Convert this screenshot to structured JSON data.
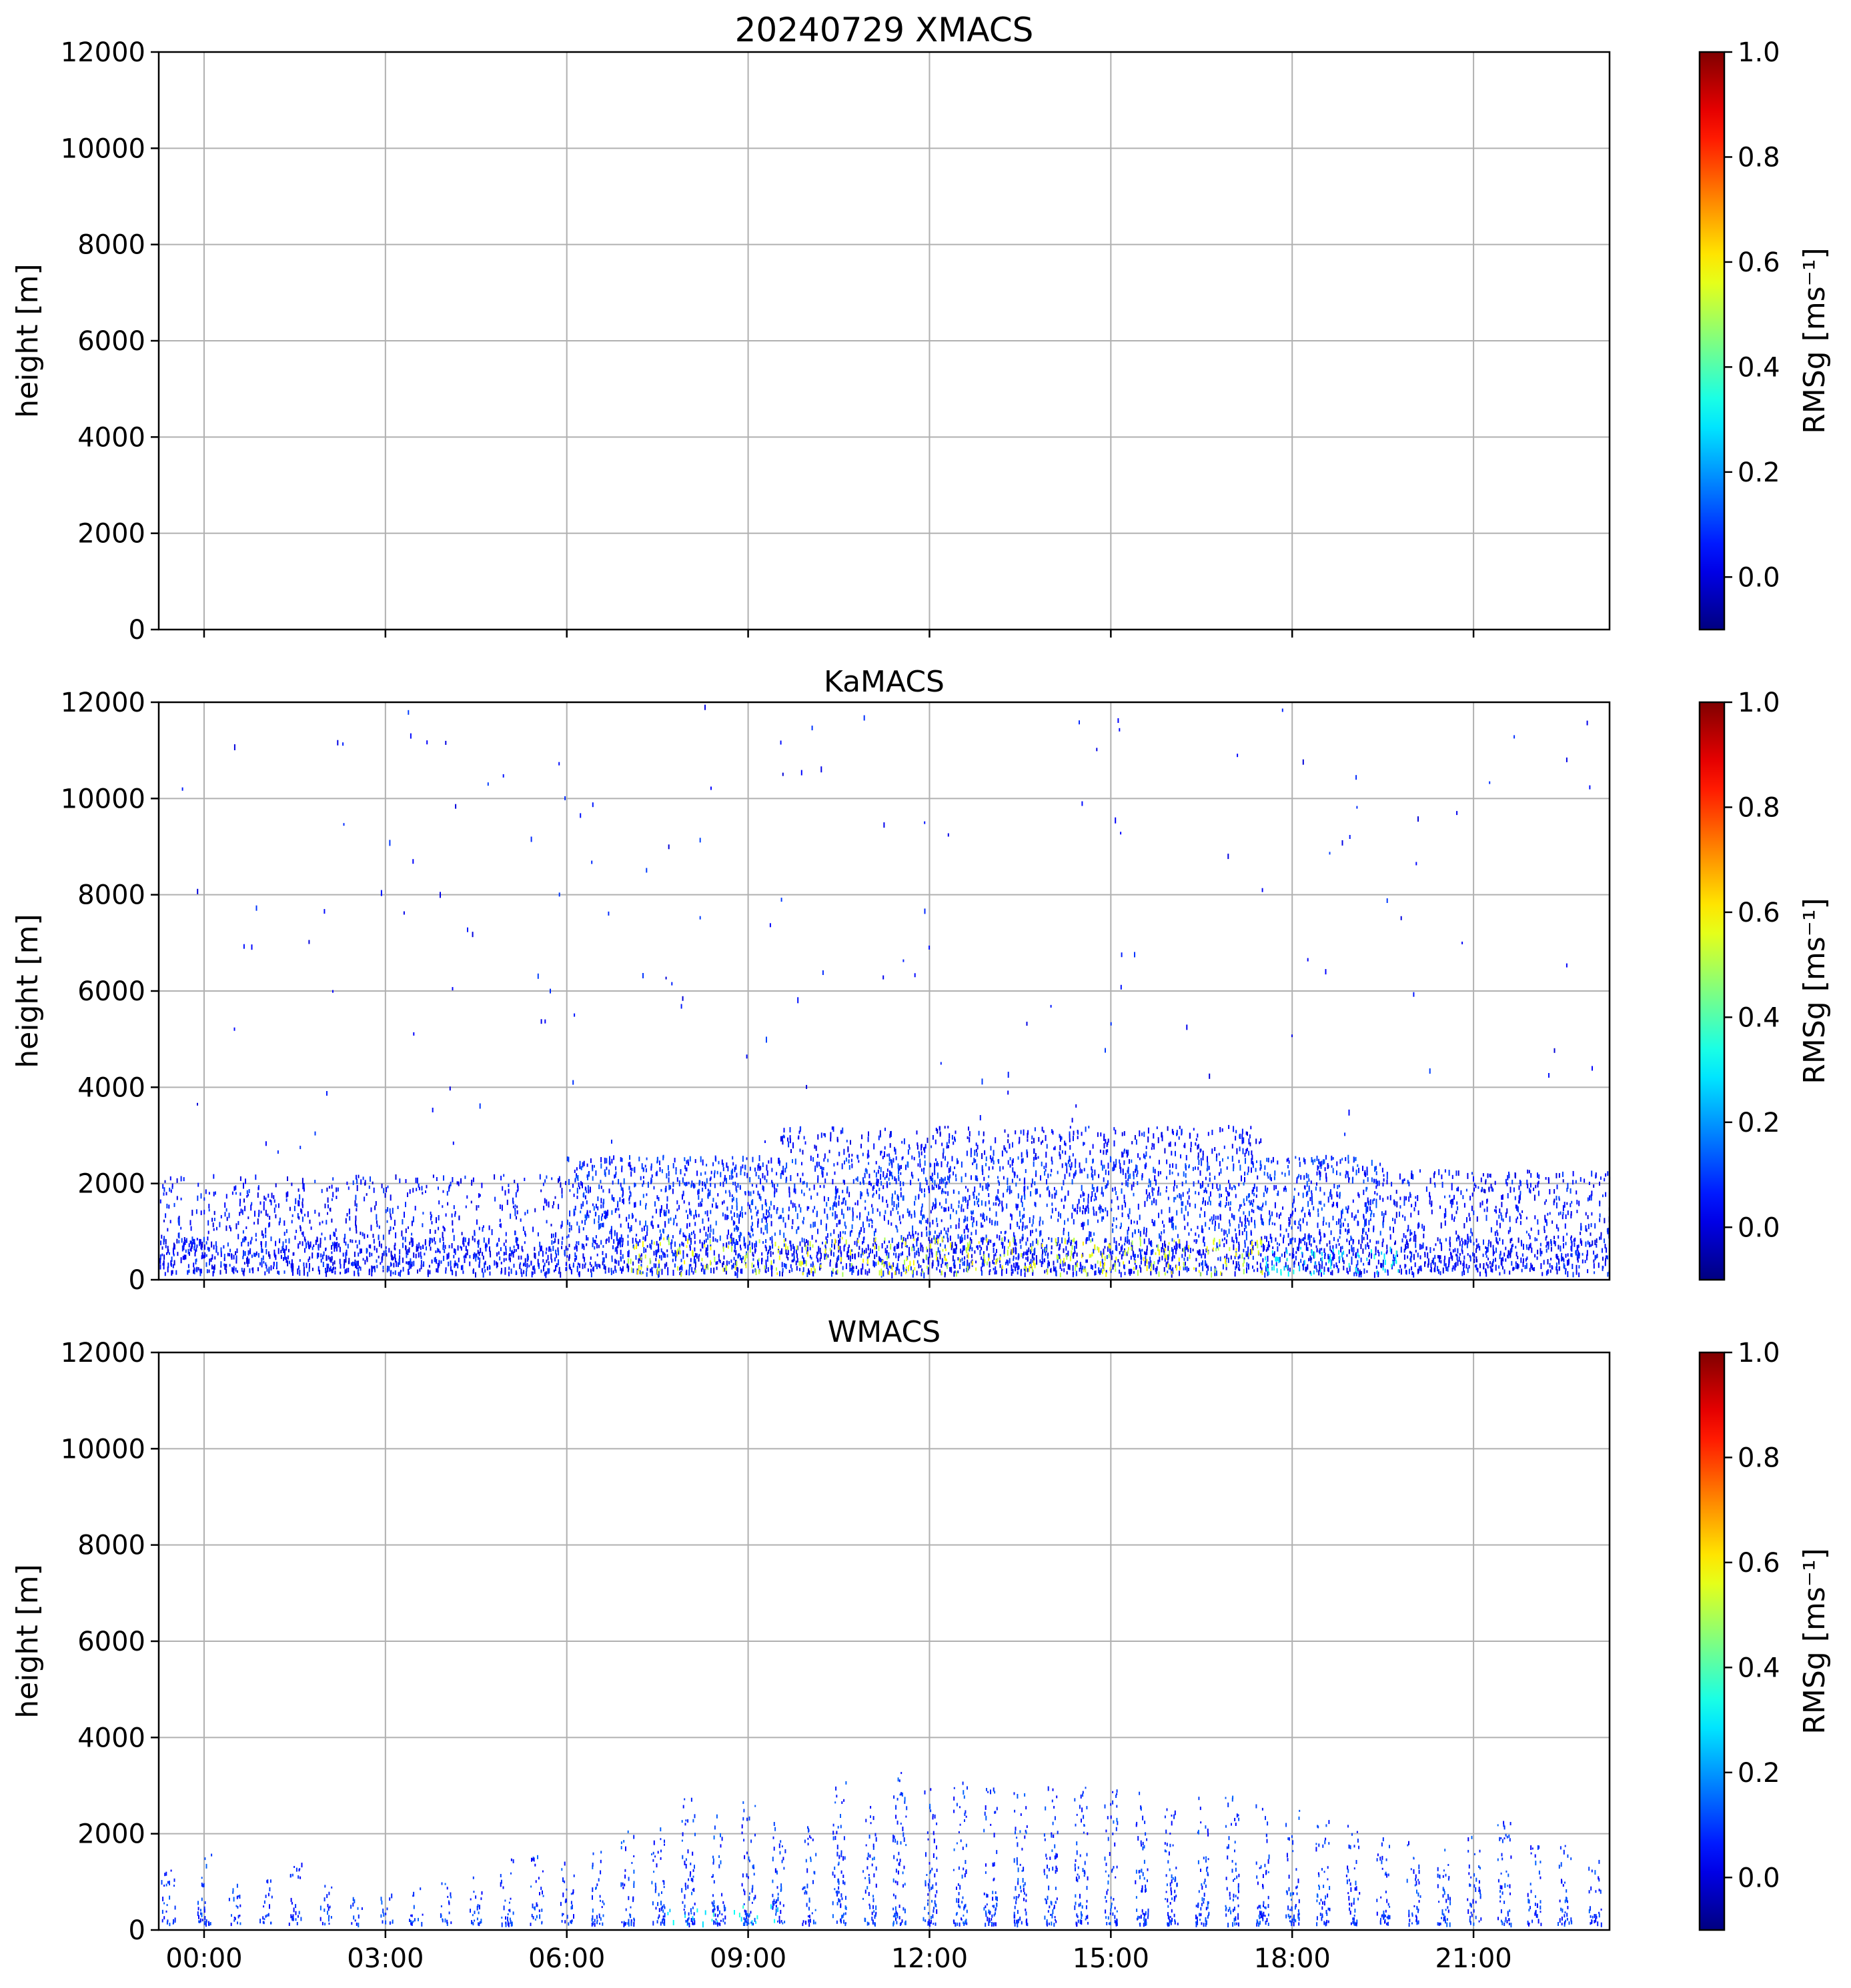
{
  "chart_data": [
    {
      "type": "heatmap",
      "title": "20240729 XMACS",
      "ylabel": "height [m]",
      "ylim": [
        0,
        12000
      ],
      "yticks": [
        0,
        2000,
        4000,
        6000,
        8000,
        10000,
        12000
      ],
      "xlim_hours": [
        -0.75,
        23.25
      ],
      "xticks_hours": [
        0,
        3,
        6,
        9,
        12,
        15,
        18,
        21
      ],
      "xticklabels": [
        "00:00",
        "03:00",
        "06:00",
        "09:00",
        "12:00",
        "15:00",
        "18:00",
        "21:00"
      ],
      "grid": true,
      "colorbar": {
        "label": "RMSg [ms⁻¹]",
        "range": [
          -0.1,
          1.0
        ],
        "ticks": [
          0.0,
          0.2,
          0.4,
          0.6,
          0.8,
          1.0
        ],
        "ticklabels": [
          "0.0",
          "0.2",
          "0.4",
          "0.6",
          "0.8",
          "1.0"
        ],
        "colormap": "jet"
      },
      "has_data": false,
      "echo_regions": []
    },
    {
      "type": "heatmap",
      "title": "KaMACS",
      "ylabel": "height [m]",
      "ylim": [
        0,
        12000
      ],
      "yticks": [
        0,
        2000,
        4000,
        6000,
        8000,
        10000,
        12000
      ],
      "xlim_hours": [
        -0.75,
        23.25
      ],
      "xticks_hours": [
        0,
        3,
        6,
        9,
        12,
        15,
        18,
        21
      ],
      "xticklabels": [
        "00:00",
        "03:00",
        "06:00",
        "09:00",
        "12:00",
        "15:00",
        "18:00",
        "21:00"
      ],
      "grid": true,
      "colorbar": {
        "label": "RMSg [ms⁻¹]",
        "range": [
          -0.1,
          1.0
        ],
        "ticks": [
          0.0,
          0.2,
          0.4,
          0.6,
          0.8,
          1.0
        ],
        "ticklabels": [
          "0.0",
          "0.2",
          "0.4",
          "0.6",
          "0.8",
          "1.0"
        ],
        "colormap": "jet"
      },
      "has_data": true,
      "echo_regions": [
        {
          "t0": -0.75,
          "t1": 23.25,
          "h0": 150,
          "h1": 900,
          "value": 0.05,
          "density": 0.9
        },
        {
          "t0": -0.75,
          "t1": 6.0,
          "h0": 900,
          "h1": 2200,
          "value": 0.05,
          "density": 0.3
        },
        {
          "t0": 6.0,
          "t1": 19.5,
          "h0": 900,
          "h1": 2600,
          "value": 0.08,
          "density": 0.55
        },
        {
          "t0": 9.5,
          "t1": 17.5,
          "h0": 2600,
          "h1": 3200,
          "value": 0.05,
          "density": 0.4
        },
        {
          "t0": 19.5,
          "t1": 23.25,
          "h0": 900,
          "h1": 2300,
          "value": 0.05,
          "density": 0.4
        },
        {
          "t0": 7.0,
          "t1": 17.5,
          "h0": 150,
          "h1": 900,
          "value": 0.55,
          "density": 0.25
        },
        {
          "t0": 17.5,
          "t1": 20.0,
          "h0": 150,
          "h1": 700,
          "value": 0.3,
          "density": 0.3
        },
        {
          "t0": -0.75,
          "t1": 23.25,
          "h0": 2500,
          "h1": 12000,
          "value": 0.05,
          "density": 0.004
        }
      ]
    },
    {
      "type": "heatmap",
      "title": "WMACS",
      "ylabel": "height [m]",
      "ylim": [
        0,
        12000
      ],
      "yticks": [
        0,
        2000,
        4000,
        6000,
        8000,
        10000,
        12000
      ],
      "xlim_hours": [
        -0.75,
        23.25
      ],
      "xticks_hours": [
        0,
        3,
        6,
        9,
        12,
        15,
        18,
        21
      ],
      "xticklabels": [
        "00:00",
        "03:00",
        "06:00",
        "09:00",
        "12:00",
        "15:00",
        "18:00",
        "21:00"
      ],
      "grid": true,
      "colorbar": {
        "label": "RMSg [ms⁻¹]",
        "range": [
          -0.1,
          1.0
        ],
        "ticks": [
          0.0,
          0.2,
          0.4,
          0.6,
          0.8,
          1.0
        ],
        "ticklabels": [
          "0.0",
          "0.2",
          "0.4",
          "0.6",
          "0.8",
          "1.0"
        ],
        "colormap": "jet"
      },
      "has_data": true,
      "column_period_hours": 0.5,
      "columns": [
        {
          "t": -0.6,
          "top": 1400
        },
        {
          "t": 0.0,
          "top": 1600
        },
        {
          "t": 0.5,
          "top": 1100
        },
        {
          "t": 1.0,
          "top": 1100
        },
        {
          "t": 1.5,
          "top": 1400
        },
        {
          "t": 2.0,
          "top": 1000
        },
        {
          "t": 2.5,
          "top": 700
        },
        {
          "t": 3.0,
          "top": 800
        },
        {
          "t": 3.5,
          "top": 900
        },
        {
          "t": 4.0,
          "top": 1000
        },
        {
          "t": 4.5,
          "top": 1200
        },
        {
          "t": 5.0,
          "top": 1500
        },
        {
          "t": 5.5,
          "top": 1600
        },
        {
          "t": 6.0,
          "top": 1500
        },
        {
          "t": 6.5,
          "top": 1700
        },
        {
          "t": 7.0,
          "top": 2100
        },
        {
          "t": 7.5,
          "top": 2400
        },
        {
          "t": 8.0,
          "top": 2800
        },
        {
          "t": 8.5,
          "top": 2500
        },
        {
          "t": 9.0,
          "top": 2800
        },
        {
          "t": 9.5,
          "top": 2300
        },
        {
          "t": 10.0,
          "top": 2200
        },
        {
          "t": 10.5,
          "top": 3100
        },
        {
          "t": 11.0,
          "top": 2600
        },
        {
          "t": 11.5,
          "top": 3300
        },
        {
          "t": 12.0,
          "top": 3000
        },
        {
          "t": 12.5,
          "top": 3100
        },
        {
          "t": 13.0,
          "top": 3000
        },
        {
          "t": 13.5,
          "top": 3000
        },
        {
          "t": 14.0,
          "top": 3000
        },
        {
          "t": 14.5,
          "top": 3000
        },
        {
          "t": 15.0,
          "top": 3000
        },
        {
          "t": 15.5,
          "top": 2900
        },
        {
          "t": 16.0,
          "top": 2900
        },
        {
          "t": 16.5,
          "top": 2900
        },
        {
          "t": 17.0,
          "top": 2800
        },
        {
          "t": 17.5,
          "top": 2700
        },
        {
          "t": 18.0,
          "top": 2500
        },
        {
          "t": 18.5,
          "top": 2400
        },
        {
          "t": 19.0,
          "top": 2200
        },
        {
          "t": 19.5,
          "top": 2000
        },
        {
          "t": 20.0,
          "top": 1900
        },
        {
          "t": 20.5,
          "top": 2000
        },
        {
          "t": 21.0,
          "top": 2000
        },
        {
          "t": 21.5,
          "top": 2400
        },
        {
          "t": 22.0,
          "top": 1800
        },
        {
          "t": 22.5,
          "top": 1800
        },
        {
          "t": 23.0,
          "top": 1500
        }
      ],
      "echo_regions": [
        {
          "t0": 7.5,
          "t1": 9.5,
          "h0": 150,
          "h1": 600,
          "value": 0.3,
          "density": 0.15
        }
      ]
    }
  ]
}
